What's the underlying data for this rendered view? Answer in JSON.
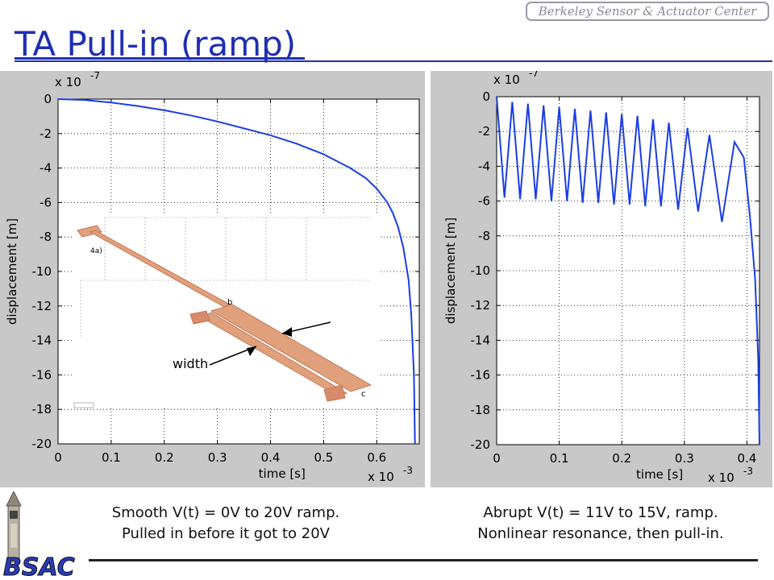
{
  "header": {
    "logo_text": "Berkeley Sensor & Actuator Center",
    "title": "TA Pull-in (ramp)"
  },
  "footer": {
    "logo_text": "BSAC"
  },
  "captions": {
    "left_line1": "Smooth V(t) = 0V to 20V ramp.",
    "left_line2": "Pulled in before it got to 20V",
    "right_line1": "Abrupt V(t) = 11V to 15V, ramp.",
    "right_line2": "Nonlinear resonance, then pull-in."
  },
  "inset": {
    "label_fig": "4a)",
    "label_b": "b",
    "label_c": "c",
    "label_width": "width"
  },
  "chart_data": [
    {
      "type": "line",
      "xlabel": "time [s]",
      "ylabel": "displacement [m]",
      "x_exponent": "x 10",
      "x_exponent_power": "-3",
      "y_exponent": "x 10",
      "y_exponent_power": "-7",
      "xlim": [
        0,
        0.68
      ],
      "ylim": [
        -20,
        0
      ],
      "x_ticks": [
        0,
        0.1,
        0.2,
        0.3,
        0.4,
        0.5,
        0.6
      ],
      "x_tick_labels": [
        "0",
        "0.1",
        "0.2",
        "0.3",
        "0.4",
        "0.5",
        "0.6"
      ],
      "y_ticks": [
        0,
        -2,
        -4,
        -6,
        -8,
        -10,
        -12,
        -14,
        -16,
        -18,
        -20
      ],
      "y_tick_labels": [
        "0",
        "-2",
        "-4",
        "-6",
        "-8",
        "-10",
        "-12",
        "-14",
        "-16",
        "-18",
        "-20"
      ],
      "grid": true,
      "color": "#1a3ee6",
      "x": [
        0,
        0.05,
        0.1,
        0.15,
        0.2,
        0.25,
        0.3,
        0.35,
        0.4,
        0.45,
        0.5,
        0.55,
        0.58,
        0.6,
        0.62,
        0.63,
        0.64,
        0.65,
        0.66,
        0.665,
        0.67,
        0.672
      ],
      "y": [
        0,
        -0.05,
        -0.2,
        -0.4,
        -0.65,
        -0.95,
        -1.3,
        -1.7,
        -2.1,
        -2.6,
        -3.2,
        -4.0,
        -4.6,
        -5.2,
        -6.0,
        -6.6,
        -7.4,
        -8.6,
        -10.5,
        -12.5,
        -16.0,
        -20
      ]
    },
    {
      "type": "line",
      "xlabel": "time [s]",
      "ylabel": "displacement [m]",
      "x_exponent": "x 10",
      "x_exponent_power": "-3",
      "y_exponent": "x 10",
      "y_exponent_power": "-7",
      "xlim": [
        0,
        0.42
      ],
      "ylim": [
        -20,
        0
      ],
      "x_ticks": [
        0,
        0.1,
        0.2,
        0.3,
        0.4
      ],
      "x_tick_labels": [
        "0",
        "0.1",
        "0.2",
        "0.3",
        "0.4"
      ],
      "y_ticks": [
        0,
        -2,
        -4,
        -6,
        -8,
        -10,
        -12,
        -14,
        -16,
        -18,
        -20
      ],
      "y_tick_labels": [
        "0",
        "-2",
        "-4",
        "-6",
        "-8",
        "-10",
        "-12",
        "-14",
        "-16",
        "-18",
        "-20"
      ],
      "grid": true,
      "color": "#1a3ee6",
      "x": [
        0,
        0.0125,
        0.025,
        0.0375,
        0.05,
        0.0625,
        0.075,
        0.0875,
        0.1,
        0.1125,
        0.125,
        0.1375,
        0.15,
        0.1625,
        0.175,
        0.1875,
        0.2,
        0.2125,
        0.225,
        0.2375,
        0.25,
        0.2625,
        0.275,
        0.29,
        0.305,
        0.322,
        0.34,
        0.36,
        0.38,
        0.395,
        0.405,
        0.413,
        0.418,
        0.42
      ],
      "y": [
        0,
        -5.8,
        -0.3,
        -5.9,
        -0.4,
        -5.9,
        -0.5,
        -6.0,
        -0.6,
        -6.0,
        -0.7,
        -6.1,
        -0.8,
        -6.1,
        -0.9,
        -6.2,
        -1.0,
        -6.2,
        -1.1,
        -6.3,
        -1.3,
        -6.3,
        -1.5,
        -6.5,
        -1.8,
        -6.6,
        -2.2,
        -7.2,
        -2.6,
        -3.5,
        -7.0,
        -10.5,
        -15.0,
        -20
      ]
    }
  ]
}
